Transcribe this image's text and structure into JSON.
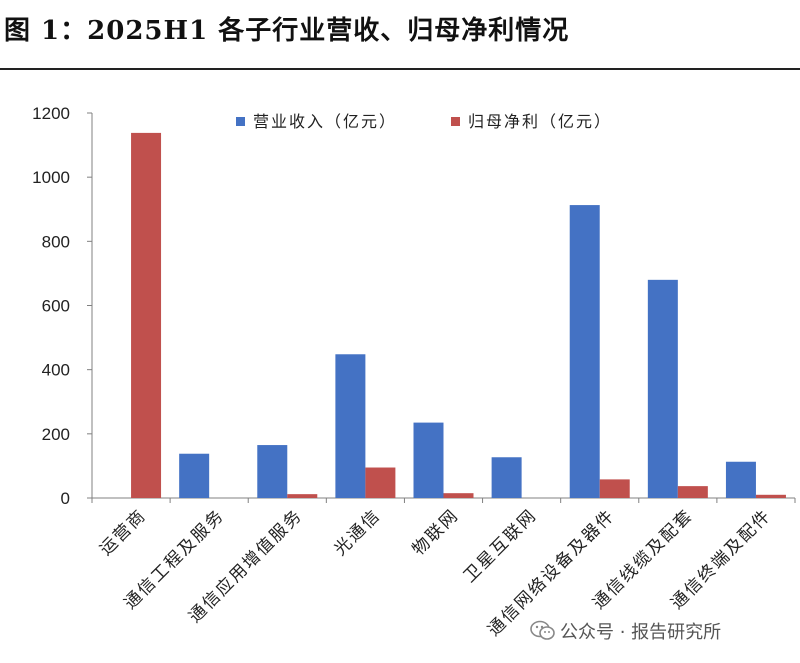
{
  "title": "图 1：2025H1 各子行业营收、归母净利情况",
  "watermark": "公众号 · 报告研究所",
  "chart_data": {
    "type": "bar",
    "title": "",
    "xlabel": "",
    "ylabel": "",
    "ylim": [
      0,
      1200
    ],
    "yticks": [
      0,
      200,
      400,
      600,
      800,
      1000,
      1200
    ],
    "grid": false,
    "legend_position": "top",
    "categories": [
      "运营商",
      "通信工程及服务",
      "通信应用增值服务",
      "光通信",
      "物联网",
      "卫星互联网",
      "通信网络设备及器件",
      "通信线缆及配套",
      "通信终端及配件"
    ],
    "series": [
      {
        "name": "营业收入（亿元）",
        "color": "#4472c4",
        "values": [
          0,
          138,
          165,
          448,
          235,
          127,
          913,
          680,
          113
        ]
      },
      {
        "name": "归母净利（亿元）",
        "color": "#c0504d",
        "values": [
          1138,
          0,
          12,
          95,
          15,
          0,
          58,
          37,
          10
        ]
      }
    ]
  }
}
